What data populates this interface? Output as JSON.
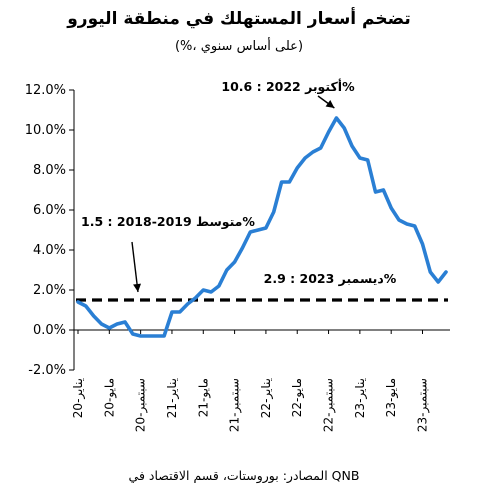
{
  "chart_data": {
    "type": "line",
    "title": "تضخم أسعار المستهلك في منطقة اليورو",
    "subtitle": "(%، على أساس سنوي)",
    "source": "المصادر: بوروستات، قسم الاقتصاد في QNB",
    "ylim": [
      -2.0,
      12.0
    ],
    "y_ticks": [
      "-2.0%",
      "0.0%",
      "2.0%",
      "4.0%",
      "6.0%",
      "8.0%",
      "10.0%",
      "12.0%"
    ],
    "x_ticks": [
      "يناير-20",
      "مايو-20",
      "سبتمبر-20",
      "يناير-21",
      "مايو-21",
      "سبتمبر-21",
      "يناير-22",
      "مايو-22",
      "سبتمبر-22",
      "يناير-23",
      "مايو-23",
      "سبتمبر-23"
    ],
    "grid": false,
    "legend": "none",
    "series": [
      {
        "color": "#2a7fd4",
        "x": [
          "2020-01",
          "2020-02",
          "2020-03",
          "2020-04",
          "2020-05",
          "2020-06",
          "2020-07",
          "2020-08",
          "2020-09",
          "2020-10",
          "2020-11",
          "2020-12",
          "2021-01",
          "2021-02",
          "2021-03",
          "2021-04",
          "2021-05",
          "2021-06",
          "2021-07",
          "2021-08",
          "2021-09",
          "2021-10",
          "2021-11",
          "2021-12",
          "2022-01",
          "2022-02",
          "2022-03",
          "2022-04",
          "2022-05",
          "2022-06",
          "2022-07",
          "2022-08",
          "2022-09",
          "2022-10",
          "2022-11",
          "2022-12",
          "2023-01",
          "2023-02",
          "2023-03",
          "2023-04",
          "2023-05",
          "2023-06",
          "2023-07",
          "2023-08",
          "2023-09",
          "2023-10",
          "2023-11",
          "2023-12"
        ],
        "values": [
          1.4,
          1.2,
          0.7,
          0.3,
          0.1,
          0.3,
          0.4,
          -0.2,
          -0.3,
          -0.3,
          -0.3,
          -0.3,
          0.9,
          0.9,
          1.3,
          1.6,
          2.0,
          1.9,
          2.2,
          3.0,
          3.4,
          4.1,
          4.9,
          5.0,
          5.1,
          5.9,
          7.4,
          7.4,
          8.1,
          8.6,
          8.9,
          9.1,
          9.9,
          10.6,
          10.1,
          9.2,
          8.6,
          8.5,
          6.9,
          7.0,
          6.1,
          5.5,
          5.3,
          5.2,
          4.3,
          2.9,
          2.4,
          2.9
        ]
      }
    ],
    "reference_line": {
      "value": 1.5,
      "style": "dashed",
      "color": "#000000"
    },
    "annotations": [
      {
        "text": "أكتوبر 2022 : 10.6%",
        "x": "2022-10",
        "y": 10.6
      },
      {
        "text": "متوسط 2019-2018 : 1.5%",
        "x": "2021-01",
        "y": 1.5
      },
      {
        "text": "ديسمبر 2023 : 2.9%",
        "x": "2023-12",
        "y": 2.9
      }
    ]
  }
}
